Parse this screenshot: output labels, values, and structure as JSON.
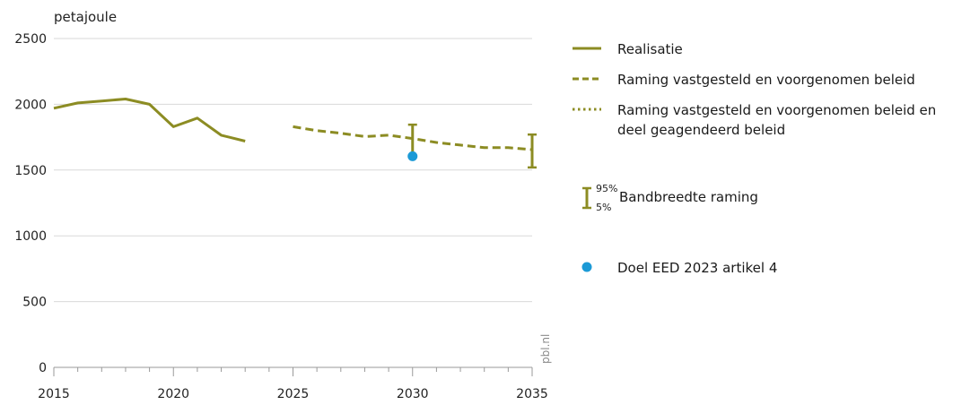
{
  "chart_data": {
    "type": "line",
    "ylabel": "petajoule",
    "ylim": [
      0,
      2500
    ],
    "xlim": [
      2015,
      2035
    ],
    "yticks": [
      0,
      500,
      1000,
      1500,
      2000,
      2500
    ],
    "xticks": [
      2015,
      2020,
      2025,
      2030,
      2035
    ],
    "grid": true,
    "legend_position": "right",
    "colors": {
      "line": "#8c8c23",
      "target": "#1c9ad6",
      "grid": "#d9d9d9"
    },
    "series": [
      {
        "name": "Realisatie",
        "style": "solid",
        "x": [
          2015,
          2016,
          2017,
          2018,
          2019,
          2020,
          2021,
          2022,
          2023
        ],
        "y": [
          1970,
          2010,
          2025,
          2040,
          2000,
          1830,
          1895,
          1765,
          1720
        ]
      },
      {
        "name": "Raming vastgesteld en voorgenomen beleid",
        "style": "dashed",
        "x": [
          2025,
          2026,
          2027,
          2028,
          2029,
          2030,
          2031,
          2032,
          2033,
          2034,
          2035
        ],
        "y": [
          1830,
          1800,
          1780,
          1755,
          1765,
          1740,
          1710,
          1690,
          1670,
          1670,
          1655
        ]
      },
      {
        "name": "Raming vastgesteld en voorgenomen beleid en deel geagendeerd beleid",
        "style": "dotted",
        "x": [],
        "y": []
      }
    ],
    "error_bars": [
      {
        "x": 2030,
        "low": 1610,
        "high": 1845
      },
      {
        "x": 2035,
        "low": 1520,
        "high": 1770
      }
    ],
    "target_points": [
      {
        "name": "Doel EED 2023 artikel 4",
        "x": 2030,
        "y": 1605
      }
    ],
    "band_legend": {
      "label": "Bandbreedte raming",
      "high": "95%",
      "low": "5%"
    },
    "credit": "pbl.nl"
  }
}
